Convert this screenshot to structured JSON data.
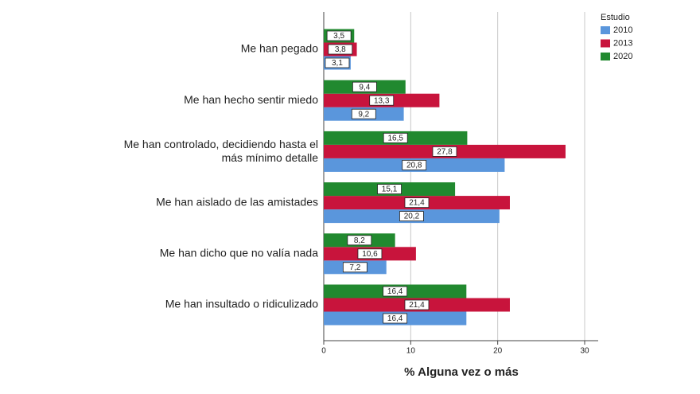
{
  "chart_data": {
    "type": "bar",
    "orientation": "horizontal",
    "x_label": "% Alguna vez o más",
    "categories": [
      "Me han pegado",
      "Me han hecho sentir miedo",
      "Me han controlado, decidiendo hasta el\nmás mínimo detalle",
      "Me han aislado de las amistades",
      "Me han dicho que no valía nada",
      "Me han insultado o ridiculizado"
    ],
    "series": [
      {
        "name": "2010",
        "color": "#5a96dc",
        "values": [
          3.1,
          9.2,
          20.8,
          20.2,
          7.2,
          16.4
        ],
        "value_labels": [
          "3,1",
          "9,2",
          "20,8",
          "20,2",
          "7,2",
          "16,4"
        ]
      },
      {
        "name": "2013",
        "color": "#c8143c",
        "values": [
          3.8,
          13.3,
          27.8,
          21.4,
          10.6,
          21.4
        ],
        "value_labels": [
          "3,8",
          "13,3",
          "27,8",
          "21,4",
          "10,6",
          "21,4"
        ]
      },
      {
        "name": "2020",
        "color": "#21892f",
        "values": [
          3.5,
          9.4,
          16.5,
          15.1,
          8.2,
          16.4
        ],
        "value_labels": [
          "3,5",
          "9,4",
          "16,5",
          "15,1",
          "8,2",
          "16,4"
        ]
      }
    ],
    "legend_title": "Estudio",
    "xlim": [
      0,
      30
    ],
    "xticks": [
      0,
      10,
      20,
      30
    ],
    "grid": true
  }
}
